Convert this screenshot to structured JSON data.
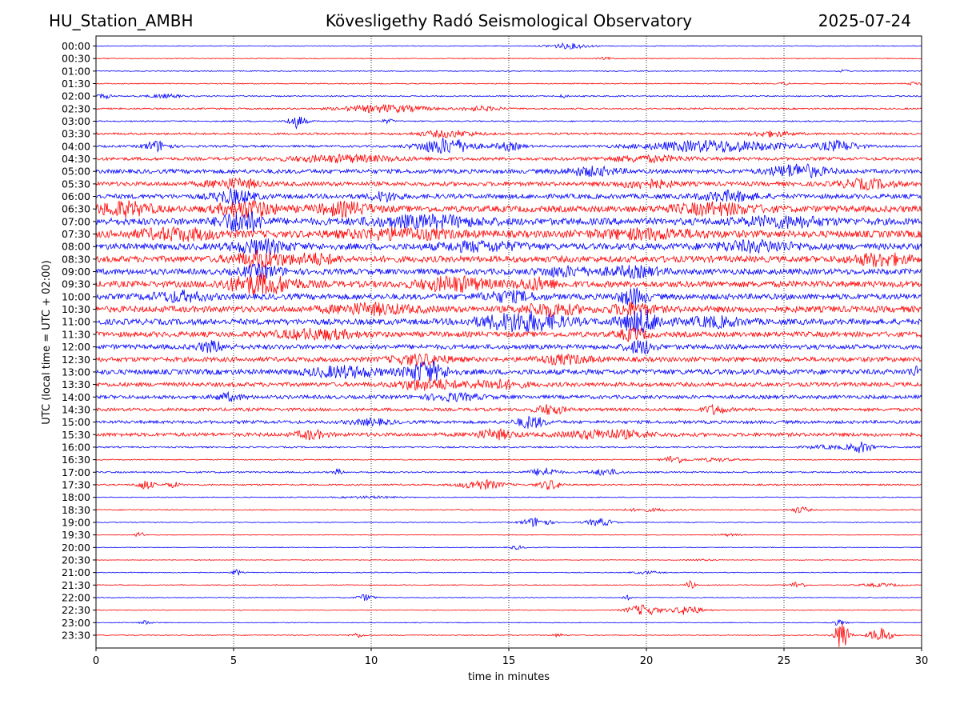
{
  "header": {
    "station": "HU_Station_AMBH",
    "title": "Kövesligethy Radó Seismological Observatory",
    "date": "2025-07-24"
  },
  "chart_data": {
    "type": "line",
    "title": "Kövesligethy Radó Seismological Observatory",
    "xlabel": "time in minutes",
    "ylabel": "UTC (local time = UTC + 02:00)",
    "xlim": [
      0,
      30
    ],
    "x_ticks": [
      0,
      5,
      10,
      15,
      20,
      25,
      30
    ],
    "vertical_grid": "dotted at every 5 minutes",
    "series_colors": [
      "#0000ff",
      "#ff0000"
    ],
    "row_color_pattern": "alternating blue/red starting with blue at 00:00",
    "rows": [
      {
        "label": "00:00",
        "base": 0.08,
        "bursts": [
          {
            "t": 17.2,
            "w": 1.5,
            "a": 0.5
          }
        ]
      },
      {
        "label": "00:30",
        "base": 0.08,
        "bursts": [
          {
            "t": 18.5,
            "w": 0.6,
            "a": 0.2
          }
        ]
      },
      {
        "label": "01:00",
        "base": 0.08,
        "bursts": [
          {
            "t": 27.2,
            "w": 0.4,
            "a": 0.25
          }
        ]
      },
      {
        "label": "01:30",
        "base": 0.1,
        "bursts": [
          {
            "t": 25.0,
            "w": 0.3,
            "a": 0.3
          },
          {
            "t": 29.8,
            "w": 0.5,
            "a": 0.35
          }
        ]
      },
      {
        "label": "02:00",
        "base": 0.12,
        "bursts": [
          {
            "t": 0.3,
            "w": 0.6,
            "a": 0.4
          },
          {
            "t": 2.5,
            "w": 1.2,
            "a": 0.35
          },
          {
            "t": 17.0,
            "w": 0.3,
            "a": 0.3
          }
        ]
      },
      {
        "label": "02:30",
        "base": 0.15,
        "bursts": [
          {
            "t": 10.5,
            "w": 3.0,
            "a": 0.7
          },
          {
            "t": 14.0,
            "w": 1.5,
            "a": 0.4
          }
        ]
      },
      {
        "label": "03:00",
        "base": 0.12,
        "bursts": [
          {
            "t": 7.3,
            "w": 0.6,
            "a": 1.3
          },
          {
            "t": 10.6,
            "w": 0.4,
            "a": 0.4
          }
        ]
      },
      {
        "label": "03:30",
        "base": 0.2,
        "bursts": [
          {
            "t": 12.8,
            "w": 2.0,
            "a": 0.6
          },
          {
            "t": 24.5,
            "w": 1.5,
            "a": 0.5
          }
        ]
      },
      {
        "label": "04:00",
        "base": 0.2,
        "bursts": [
          {
            "t": 2.2,
            "w": 0.9,
            "a": 1.0
          },
          {
            "t": 12.7,
            "w": 2.0,
            "a": 1.5
          },
          {
            "t": 15.0,
            "w": 1.0,
            "a": 0.7
          },
          {
            "t": 22.5,
            "w": 5.0,
            "a": 1.1
          },
          {
            "t": 27.0,
            "w": 1.5,
            "a": 0.9
          }
        ]
      },
      {
        "label": "04:30",
        "base": 0.3,
        "bursts": [
          {
            "t": 9.0,
            "w": 4.0,
            "a": 0.6
          },
          {
            "t": 20.0,
            "w": 3.0,
            "a": 0.5
          }
        ]
      },
      {
        "label": "05:00",
        "base": 0.4,
        "bursts": [
          {
            "t": 18.0,
            "w": 2.0,
            "a": 0.7
          },
          {
            "t": 25.5,
            "w": 2.0,
            "a": 1.2
          }
        ]
      },
      {
        "label": "05:30",
        "base": 0.4,
        "bursts": [
          {
            "t": 5.0,
            "w": 2.0,
            "a": 0.8
          },
          {
            "t": 20.0,
            "w": 2.0,
            "a": 0.7
          },
          {
            "t": 28.0,
            "w": 2.0,
            "a": 0.8
          }
        ]
      },
      {
        "label": "06:00",
        "base": 0.45,
        "bursts": [
          {
            "t": 5.0,
            "w": 1.5,
            "a": 1.2
          },
          {
            "t": 10.5,
            "w": 1.0,
            "a": 0.8
          },
          {
            "t": 23.0,
            "w": 2.0,
            "a": 0.8
          }
        ]
      },
      {
        "label": "06:30",
        "base": 0.6,
        "bursts": [
          {
            "t": 1.0,
            "w": 2.0,
            "a": 1.2
          },
          {
            "t": 5.5,
            "w": 2.0,
            "a": 1.4
          },
          {
            "t": 9.0,
            "w": 2.0,
            "a": 1.0
          },
          {
            "t": 22.5,
            "w": 3.0,
            "a": 0.9
          }
        ]
      },
      {
        "label": "07:00",
        "base": 0.65,
        "bursts": [
          {
            "t": 5.3,
            "w": 1.5,
            "a": 1.8
          },
          {
            "t": 12.0,
            "w": 4.0,
            "a": 0.9
          },
          {
            "t": 25.0,
            "w": 3.0,
            "a": 0.8
          }
        ]
      },
      {
        "label": "07:30",
        "base": 0.65,
        "bursts": [
          {
            "t": 3.0,
            "w": 3.0,
            "a": 0.9
          },
          {
            "t": 11.0,
            "w": 4.0,
            "a": 0.8
          },
          {
            "t": 20.0,
            "w": 4.0,
            "a": 0.7
          }
        ]
      },
      {
        "label": "08:00",
        "base": 0.6,
        "bursts": [
          {
            "t": 6.0,
            "w": 2.0,
            "a": 1.1
          },
          {
            "t": 14.0,
            "w": 3.0,
            "a": 0.7
          },
          {
            "t": 24.0,
            "w": 3.0,
            "a": 0.8
          }
        ]
      },
      {
        "label": "08:30",
        "base": 0.6,
        "bursts": [
          {
            "t": 6.0,
            "w": 2.0,
            "a": 1.3
          },
          {
            "t": 8.0,
            "w": 1.5,
            "a": 0.8
          },
          {
            "t": 28.5,
            "w": 2.0,
            "a": 1.0
          }
        ]
      },
      {
        "label": "09:00",
        "base": 0.55,
        "bursts": [
          {
            "t": 6.0,
            "w": 1.5,
            "a": 1.0
          },
          {
            "t": 17.0,
            "w": 2.0,
            "a": 0.7
          },
          {
            "t": 19.5,
            "w": 2.0,
            "a": 0.8
          }
        ]
      },
      {
        "label": "09:30",
        "base": 0.6,
        "bursts": [
          {
            "t": 6.0,
            "w": 2.5,
            "a": 1.7
          },
          {
            "t": 13.0,
            "w": 2.5,
            "a": 1.2
          },
          {
            "t": 16.0,
            "w": 1.5,
            "a": 0.9
          }
        ]
      },
      {
        "label": "10:00",
        "base": 0.55,
        "bursts": [
          {
            "t": 3.0,
            "w": 2.0,
            "a": 0.8
          },
          {
            "t": 15.0,
            "w": 2.0,
            "a": 0.8
          },
          {
            "t": 19.5,
            "w": 1.0,
            "a": 1.4
          }
        ]
      },
      {
        "label": "10:30",
        "base": 0.6,
        "bursts": [
          {
            "t": 10.0,
            "w": 3.0,
            "a": 0.8
          },
          {
            "t": 16.5,
            "w": 2.0,
            "a": 1.0
          },
          {
            "t": 19.5,
            "w": 1.5,
            "a": 1.0
          }
        ]
      },
      {
        "label": "11:00",
        "base": 0.55,
        "bursts": [
          {
            "t": 15.5,
            "w": 3.0,
            "a": 1.7
          },
          {
            "t": 19.8,
            "w": 1.5,
            "a": 2.0
          },
          {
            "t": 22.5,
            "w": 2.0,
            "a": 0.8
          }
        ]
      },
      {
        "label": "11:30",
        "base": 0.5,
        "bursts": [
          {
            "t": 8.0,
            "w": 3.0,
            "a": 0.8
          },
          {
            "t": 19.5,
            "w": 1.0,
            "a": 1.0
          }
        ]
      },
      {
        "label": "12:00",
        "base": 0.45,
        "bursts": [
          {
            "t": 4.2,
            "w": 1.0,
            "a": 0.9
          },
          {
            "t": 19.8,
            "w": 1.0,
            "a": 1.2
          }
        ]
      },
      {
        "label": "12:30",
        "base": 0.45,
        "bursts": [
          {
            "t": 11.8,
            "w": 2.0,
            "a": 0.9
          },
          {
            "t": 17.0,
            "w": 2.0,
            "a": 0.7
          }
        ]
      },
      {
        "label": "13:00",
        "base": 0.5,
        "bursts": [
          {
            "t": 9.0,
            "w": 2.5,
            "a": 0.9
          },
          {
            "t": 12.0,
            "w": 1.5,
            "a": 1.8
          },
          {
            "t": 29.8,
            "w": 0.6,
            "a": 0.7
          }
        ]
      },
      {
        "label": "13:30",
        "base": 0.4,
        "bursts": [
          {
            "t": 12.0,
            "w": 2.0,
            "a": 1.0
          },
          {
            "t": 14.5,
            "w": 2.0,
            "a": 0.8
          }
        ]
      },
      {
        "label": "14:00",
        "base": 0.35,
        "bursts": [
          {
            "t": 4.8,
            "w": 1.0,
            "a": 0.6
          },
          {
            "t": 13.0,
            "w": 2.0,
            "a": 0.6
          }
        ]
      },
      {
        "label": "14:30",
        "base": 0.3,
        "bursts": [
          {
            "t": 16.5,
            "w": 1.0,
            "a": 0.9
          },
          {
            "t": 22.5,
            "w": 0.8,
            "a": 0.8
          }
        ]
      },
      {
        "label": "15:00",
        "base": 0.3,
        "bursts": [
          {
            "t": 15.8,
            "w": 1.0,
            "a": 1.1
          },
          {
            "t": 10.0,
            "w": 1.5,
            "a": 0.5
          }
        ]
      },
      {
        "label": "15:30",
        "base": 0.35,
        "bursts": [
          {
            "t": 7.8,
            "w": 1.0,
            "a": 0.8
          },
          {
            "t": 14.5,
            "w": 1.5,
            "a": 0.8
          },
          {
            "t": 18.5,
            "w": 3.0,
            "a": 0.8
          }
        ]
      },
      {
        "label": "16:00",
        "base": 0.15,
        "bursts": [
          {
            "t": 27.8,
            "w": 0.9,
            "a": 1.0
          },
          {
            "t": 26.5,
            "w": 1.5,
            "a": 0.3
          }
        ]
      },
      {
        "label": "16:30",
        "base": 0.1,
        "bursts": [
          {
            "t": 21.0,
            "w": 0.7,
            "a": 0.8
          },
          {
            "t": 22.5,
            "w": 1.5,
            "a": 0.3
          }
        ]
      },
      {
        "label": "17:00",
        "base": 0.15,
        "bursts": [
          {
            "t": 16.3,
            "w": 1.0,
            "a": 0.8
          },
          {
            "t": 18.5,
            "w": 1.0,
            "a": 0.6
          },
          {
            "t": 8.8,
            "w": 0.3,
            "a": 0.5
          }
        ]
      },
      {
        "label": "17:30",
        "base": 0.15,
        "bursts": [
          {
            "t": 1.8,
            "w": 0.6,
            "a": 0.9
          },
          {
            "t": 2.8,
            "w": 0.5,
            "a": 0.5
          },
          {
            "t": 14.0,
            "w": 1.5,
            "a": 0.9
          },
          {
            "t": 16.5,
            "w": 0.8,
            "a": 0.9
          }
        ]
      },
      {
        "label": "18:00",
        "base": 0.08,
        "bursts": [
          {
            "t": 10.0,
            "w": 2.0,
            "a": 0.2
          }
        ]
      },
      {
        "label": "18:30",
        "base": 0.1,
        "bursts": [
          {
            "t": 25.6,
            "w": 0.6,
            "a": 0.6
          },
          {
            "t": 20.0,
            "w": 2.0,
            "a": 0.25
          }
        ]
      },
      {
        "label": "19:00",
        "base": 0.08,
        "bursts": [
          {
            "t": 16.0,
            "w": 1.0,
            "a": 0.9
          },
          {
            "t": 18.3,
            "w": 1.0,
            "a": 0.7
          }
        ]
      },
      {
        "label": "19:30",
        "base": 0.06,
        "bursts": [
          {
            "t": 1.6,
            "w": 0.3,
            "a": 0.6
          },
          {
            "t": 23.0,
            "w": 1.0,
            "a": 0.2
          }
        ]
      },
      {
        "label": "20:00",
        "base": 0.07,
        "bursts": [
          {
            "t": 15.3,
            "w": 0.5,
            "a": 0.35
          }
        ]
      },
      {
        "label": "20:30",
        "base": 0.06,
        "bursts": [
          {
            "t": 22.0,
            "w": 1.0,
            "a": 0.15
          }
        ]
      },
      {
        "label": "21:00",
        "base": 0.08,
        "bursts": [
          {
            "t": 5.1,
            "w": 0.3,
            "a": 0.6
          },
          {
            "t": 20.0,
            "w": 1.0,
            "a": 0.25
          }
        ]
      },
      {
        "label": "21:30",
        "base": 0.08,
        "bursts": [
          {
            "t": 21.6,
            "w": 0.3,
            "a": 0.9
          },
          {
            "t": 25.5,
            "w": 0.5,
            "a": 0.7
          },
          {
            "t": 28.5,
            "w": 1.5,
            "a": 0.3
          }
        ]
      },
      {
        "label": "22:00",
        "base": 0.08,
        "bursts": [
          {
            "t": 9.8,
            "w": 0.6,
            "a": 0.6
          },
          {
            "t": 19.3,
            "w": 0.3,
            "a": 0.4
          }
        ]
      },
      {
        "label": "22:30",
        "base": 0.08,
        "bursts": [
          {
            "t": 19.9,
            "w": 1.2,
            "a": 1.0
          },
          {
            "t": 21.5,
            "w": 1.0,
            "a": 0.9
          }
        ]
      },
      {
        "label": "23:00",
        "base": 0.07,
        "bursts": [
          {
            "t": 1.8,
            "w": 0.4,
            "a": 0.4
          },
          {
            "t": 27.0,
            "w": 0.5,
            "a": 0.5
          }
        ]
      },
      {
        "label": "23:30",
        "base": 0.08,
        "bursts": [
          {
            "t": 27.1,
            "w": 0.5,
            "a": 3.0
          },
          {
            "t": 28.5,
            "w": 0.8,
            "a": 1.4
          },
          {
            "t": 9.5,
            "w": 0.5,
            "a": 0.4
          },
          {
            "t": 16.8,
            "w": 0.4,
            "a": 0.3
          }
        ]
      }
    ]
  }
}
